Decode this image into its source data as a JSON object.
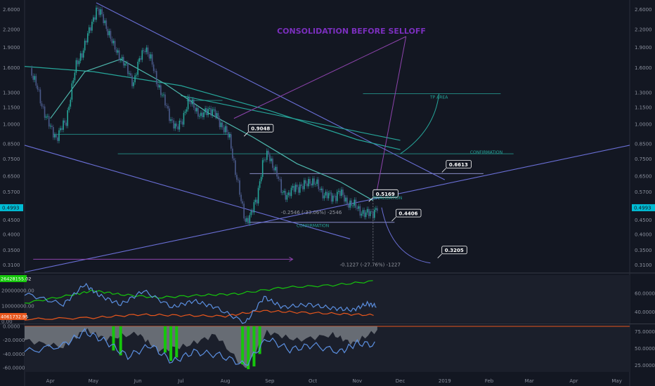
{
  "chart_data": [
    {
      "type": "candlestick",
      "scale": "log",
      "ylim": [
        0.295,
        2.75
      ],
      "xlim": [
        "2018-03-14",
        "2019-05-10"
      ],
      "title": "CONSOLIDATION BEFORE SELLOFF",
      "x_ticks": [
        "Apr",
        "May",
        "Jun",
        "Jul",
        "Aug",
        "Sep",
        "Oct",
        "Nov",
        "Dec",
        "2019",
        "Feb",
        "Mar",
        "Apr",
        "May"
      ],
      "y_ticks": [
        "2.6000",
        "2.2000",
        "1.9000",
        "1.6000",
        "1.3000",
        "1.1500",
        "1.0000",
        "0.8500",
        "0.7500",
        "0.6500",
        "0.5700",
        "0.5000",
        "0.4500",
        "0.4000",
        "0.3500",
        "0.3100"
      ],
      "y_tick_values": [
        2.6,
        2.2,
        1.9,
        1.6,
        1.3,
        1.15,
        1.0,
        0.85,
        0.75,
        0.65,
        0.57,
        0.5,
        0.45,
        0.4,
        0.35,
        0.31
      ],
      "last_price": "0.4993",
      "grid": false,
      "price_path": [
        [
          "2018-03-18",
          1.6
        ],
        [
          "2018-03-25",
          1.22
        ],
        [
          "2018-04-01",
          0.96
        ],
        [
          "2018-04-05",
          0.9
        ],
        [
          "2018-04-12",
          1.02
        ],
        [
          "2018-04-19",
          1.62
        ],
        [
          "2018-04-24",
          1.88
        ],
        [
          "2018-04-28",
          2.15
        ],
        [
          "2018-05-03",
          2.62
        ],
        [
          "2018-05-07",
          2.45
        ],
        [
          "2018-05-11",
          2.2
        ],
        [
          "2018-05-15",
          1.9
        ],
        [
          "2018-05-20",
          1.75
        ],
        [
          "2018-05-25",
          1.55
        ],
        [
          "2018-05-29",
          1.42
        ],
        [
          "2018-06-03",
          1.75
        ],
        [
          "2018-06-06",
          1.92
        ],
        [
          "2018-06-10",
          1.7
        ],
        [
          "2018-06-14",
          1.45
        ],
        [
          "2018-06-19",
          1.22
        ],
        [
          "2018-06-24",
          1.05
        ],
        [
          "2018-06-28",
          0.95
        ],
        [
          "2018-07-02",
          1.05
        ],
        [
          "2018-07-06",
          1.2
        ],
        [
          "2018-07-10",
          1.18
        ],
        [
          "2018-07-15",
          1.05
        ],
        [
          "2018-07-20",
          1.15
        ],
        [
          "2018-07-25",
          1.08
        ],
        [
          "2018-07-31",
          0.97
        ],
        [
          "2018-08-04",
          0.88
        ],
        [
          "2018-08-08",
          0.68
        ],
        [
          "2018-08-12",
          0.52
        ],
        [
          "2018-08-15",
          0.45
        ],
        [
          "2018-08-19",
          0.47
        ],
        [
          "2018-08-23",
          0.54
        ],
        [
          "2018-08-27",
          0.72
        ],
        [
          "2018-08-31",
          0.78
        ],
        [
          "2018-09-04",
          0.7
        ],
        [
          "2018-09-09",
          0.58
        ],
        [
          "2018-09-14",
          0.55
        ],
        [
          "2018-09-19",
          0.6
        ],
        [
          "2018-09-24",
          0.59
        ],
        [
          "2018-09-29",
          0.63
        ],
        [
          "2018-10-04",
          0.6
        ],
        [
          "2018-10-09",
          0.56
        ],
        [
          "2018-10-14",
          0.54
        ],
        [
          "2018-10-19",
          0.57
        ],
        [
          "2018-10-24",
          0.53
        ],
        [
          "2018-10-29",
          0.51
        ],
        [
          "2018-11-03",
          0.49
        ],
        [
          "2018-11-07",
          0.47
        ],
        [
          "2018-11-11",
          0.48
        ],
        [
          "2018-11-15",
          0.5
        ]
      ],
      "horizontal_levels": [
        {
          "value": 0.92,
          "from": "2018-04-03",
          "to": "2018-08-05",
          "color": "#26a69a"
        },
        {
          "value": 1.22,
          "from": "2018-07-05",
          "to": "2018-07-30",
          "color": "#26a69a"
        },
        {
          "value": 0.782,
          "from": "2018-05-18",
          "to": "2019-02-18",
          "color": "#26a69a"
        },
        {
          "value": 0.663,
          "from": "2018-08-18",
          "to": "2019-01-28",
          "color": "#b0b4ff"
        },
        {
          "value": 0.442,
          "from": "2018-08-18",
          "to": "2018-11-27",
          "color": "#b0b4ff"
        },
        {
          "value": 1.29,
          "from": "2018-11-05",
          "to": "2019-02-09",
          "color": "#26a69a"
        }
      ],
      "trend_lines": [
        {
          "from": [
            "2018-05-03",
            2.75
          ],
          "to": [
            "2019-01-01",
            0.63
          ],
          "color": "#6a6fd6"
        },
        {
          "from": [
            "2018-03-14",
            0.292
          ],
          "to": [
            "2019-05-10",
            0.84
          ],
          "color": "#6a6fd6"
        },
        {
          "from": [
            "2018-03-14",
            0.84
          ],
          "to": [
            "2018-10-27",
            0.385
          ],
          "color": "#6a6fd6"
        },
        {
          "from": [
            "2018-07-01",
            1.27
          ],
          "to": [
            "2018-12-01",
            0.875
          ],
          "color": "#26a69a"
        }
      ],
      "moving_averages": [
        {
          "color": "#26a69a",
          "points": [
            [
              "2018-03-14",
              1.62
            ],
            [
              "2018-05-01",
              1.55
            ],
            [
              "2018-07-01",
              1.38
            ],
            [
              "2018-09-01",
              1.12
            ],
            [
              "2018-11-01",
              0.88
            ],
            [
              "2018-12-01",
              0.81
            ]
          ]
        },
        {
          "color": "#4db6ac",
          "points": [
            [
              "2018-04-01",
              1.05
            ],
            [
              "2018-04-25",
              1.55
            ],
            [
              "2018-05-20",
              1.72
            ],
            [
              "2018-06-20",
              1.4
            ],
            [
              "2018-07-20",
              1.1
            ],
            [
              "2018-08-20",
              0.9
            ],
            [
              "2018-09-20",
              0.72
            ],
            [
              "2018-10-20",
              0.62
            ],
            [
              "2018-11-12",
              0.53
            ]
          ]
        }
      ],
      "annotations": [
        {
          "label": "0.9048",
          "kind": "price-tag",
          "x": "2018-08-17",
          "y": 0.965
        },
        {
          "label": "0.6613",
          "kind": "price-tag",
          "x": "2019-01-02",
          "y": 0.715
        },
        {
          "label": "0.5169",
          "kind": "price-tag",
          "x": "2018-11-12",
          "y": 0.56
        },
        {
          "label": "0.4406",
          "kind": "price-tag",
          "x": "2018-11-28",
          "y": 0.476
        },
        {
          "label": "0.3205",
          "kind": "price-tag",
          "x": "2018-12-30",
          "y": 0.35
        },
        {
          "label": "INVALIDATION",
          "kind": "label",
          "x": "2018-11-22",
          "y": 0.535
        },
        {
          "label": "CONFIRMATION",
          "kind": "label",
          "x": "2019-01-30",
          "y": 0.782
        },
        {
          "label": "CONFIRMATION",
          "kind": "label",
          "x": "2018-10-01",
          "y": 0.425
        },
        {
          "label": "TP AREA",
          "kind": "label",
          "x": "2018-12-28",
          "y": 1.24
        },
        {
          "label": "-0.2546 (-33.06%) -2546",
          "kind": "measure",
          "x": "2018-09-30",
          "y": 0.473
        },
        {
          "label": "-0.1227 (-27.76%) -1227",
          "kind": "measure",
          "x": "2018-11-10",
          "y": 0.306
        }
      ]
    },
    {
      "type": "line",
      "panel": "indicator-1",
      "left_labels": [
        "20000000.00",
        "10000000.00",
        "0.00"
      ],
      "left_label_values": [
        20000000,
        10000000,
        0
      ],
      "right_ticks": [
        "60.0000",
        "40.0000"
      ],
      "right_tick_values": [
        60,
        40
      ],
      "value_tags": [
        {
          "label": "26428155.02",
          "color": "#16c60c"
        },
        {
          "label": "4061732.95",
          "color": "#e8561c"
        }
      ],
      "series": [
        {
          "color": "#16c60c",
          "points": [
            [
              "2018-03-14",
              12000000
            ],
            [
              "2018-04-15",
              17000000
            ],
            [
              "2018-05-01",
              20000000
            ],
            [
              "2018-05-20",
              17500000
            ],
            [
              "2018-06-15",
              15500000
            ],
            [
              "2018-07-15",
              17000000
            ],
            [
              "2018-08-10",
              18000000
            ],
            [
              "2018-09-10",
              22000000
            ],
            [
              "2018-10-15",
              23500000
            ],
            [
              "2018-11-15",
              26400000
            ]
          ]
        },
        {
          "color": "#e8561c",
          "points": [
            [
              "2018-03-14",
              1500000
            ],
            [
              "2018-05-01",
              2500000
            ],
            [
              "2018-06-01",
              4500000
            ],
            [
              "2018-07-01",
              4000000
            ],
            [
              "2018-08-01",
              3500000
            ],
            [
              "2018-08-25",
              7000000
            ],
            [
              "2018-09-20",
              6000000
            ],
            [
              "2018-10-20",
              5000000
            ],
            [
              "2018-11-15",
              4060000
            ]
          ]
        },
        {
          "color": "#5b8fe0",
          "points": [
            [
              "2018-03-14",
              60
            ],
            [
              "2018-04-10",
              48
            ],
            [
              "2018-04-25",
              70
            ],
            [
              "2018-05-05",
              58
            ],
            [
              "2018-05-20",
              48
            ],
            [
              "2018-06-05",
              63
            ],
            [
              "2018-06-25",
              45
            ],
            [
              "2018-07-10",
              52
            ],
            [
              "2018-07-25",
              45
            ],
            [
              "2018-08-15",
              28
            ],
            [
              "2018-08-28",
              56
            ],
            [
              "2018-09-10",
              45
            ],
            [
              "2018-09-28",
              48
            ],
            [
              "2018-10-15",
              44
            ],
            [
              "2018-10-29",
              42
            ],
            [
              "2018-11-08",
              49
            ],
            [
              "2018-11-15",
              46
            ]
          ]
        }
      ]
    },
    {
      "type": "area",
      "panel": "indicator-2",
      "left_labels": [
        "0.0000",
        "-20.0000",
        "-40.0000",
        "-60.0000"
      ],
      "left_label_values": [
        0,
        -20,
        -40,
        -60
      ],
      "right_ticks": [
        "75.0000",
        "50.0000",
        "25.0000"
      ],
      "right_tick_values": [
        75,
        50,
        25
      ],
      "series": [
        {
          "color": "#7b7f87",
          "kind": "area",
          "points": [
            [
              "2018-03-14",
              -20
            ],
            [
              "2018-04-10",
              -30
            ],
            [
              "2018-04-25",
              -5
            ],
            [
              "2018-05-10",
              -18
            ],
            [
              "2018-06-01",
              -10
            ],
            [
              "2018-06-15",
              -35
            ],
            [
              "2018-07-05",
              -28
            ],
            [
              "2018-07-25",
              -12
            ],
            [
              "2018-08-15",
              -62
            ],
            [
              "2018-08-30",
              -8
            ],
            [
              "2018-09-20",
              -20
            ],
            [
              "2018-10-15",
              -12
            ],
            [
              "2018-10-29",
              -25
            ],
            [
              "2018-11-15",
              -5
            ]
          ]
        },
        {
          "color": "#16c60c",
          "kind": "bars",
          "points": [
            [
              "2018-05-15",
              -35
            ],
            [
              "2018-05-20",
              -42
            ],
            [
              "2018-06-20",
              -38
            ],
            [
              "2018-06-24",
              -50
            ],
            [
              "2018-06-28",
              -45
            ],
            [
              "2018-08-13",
              -55
            ],
            [
              "2018-08-17",
              -62
            ],
            [
              "2018-08-21",
              -58
            ],
            [
              "2018-08-25",
              -40
            ]
          ]
        },
        {
          "color": "#5b8fe0",
          "kind": "line",
          "points": [
            [
              "2018-03-14",
              45
            ],
            [
              "2018-04-10",
              55
            ],
            [
              "2018-04-25",
              75
            ],
            [
              "2018-05-10",
              60
            ],
            [
              "2018-05-25",
              38
            ],
            [
              "2018-06-10",
              55
            ],
            [
              "2018-06-25",
              30
            ],
            [
              "2018-07-10",
              45
            ],
            [
              "2018-07-28",
              40
            ],
            [
              "2018-08-15",
              25
            ],
            [
              "2018-08-30",
              65
            ],
            [
              "2018-09-15",
              48
            ],
            [
              "2018-10-01",
              55
            ],
            [
              "2018-10-20",
              45
            ],
            [
              "2018-11-01",
              58
            ],
            [
              "2018-11-15",
              55
            ]
          ]
        }
      ]
    }
  ]
}
